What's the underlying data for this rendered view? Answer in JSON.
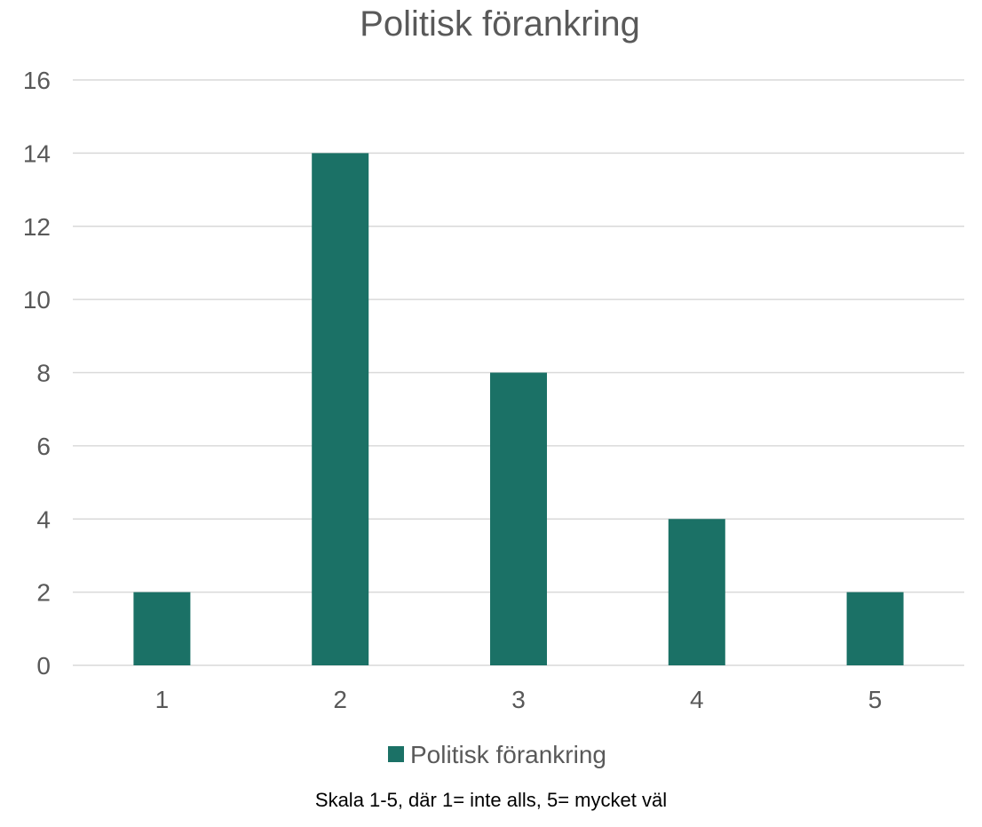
{
  "colors": {
    "bar": "#1b7166",
    "grid": "#d9d9d9",
    "text": "#595959"
  },
  "chart_data": {
    "type": "bar",
    "title": "Politisk förankring",
    "categories": [
      "1",
      "2",
      "3",
      "4",
      "5"
    ],
    "series": [
      {
        "name": "Politisk förankring",
        "values": [
          2,
          14,
          8,
          4,
          2
        ]
      }
    ],
    "y_ticks": [
      "0",
      "2",
      "4",
      "6",
      "8",
      "10",
      "12",
      "14",
      "16"
    ],
    "ylim": [
      0,
      16
    ],
    "grid": true,
    "legend": "bottom"
  },
  "caption": "Skala 1-5, där 1= inte alls, 5= mycket väl"
}
